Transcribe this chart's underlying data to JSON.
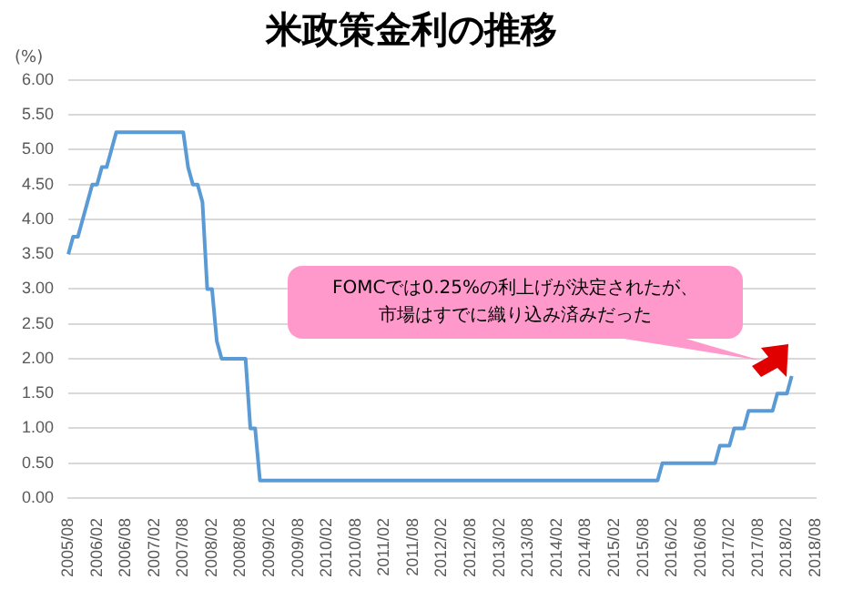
{
  "chart_data": {
    "type": "line",
    "title": "米政策金利の推移",
    "ylabel": "(%)",
    "categories": [
      "2005/08",
      null,
      null,
      null,
      null,
      null,
      "2006/02",
      null,
      null,
      null,
      null,
      null,
      "2006/08",
      null,
      null,
      null,
      null,
      null,
      "2007/02",
      null,
      null,
      null,
      null,
      null,
      "2007/08",
      null,
      null,
      null,
      null,
      null,
      "2008/02",
      null,
      null,
      null,
      null,
      null,
      "2008/08",
      null,
      null,
      null,
      null,
      null,
      "2009/02",
      null,
      null,
      null,
      null,
      null,
      "2009/08",
      null,
      null,
      null,
      null,
      null,
      "2010/02",
      null,
      null,
      null,
      null,
      null,
      "2010/08",
      null,
      null,
      null,
      null,
      null,
      "2011/02",
      null,
      null,
      null,
      null,
      null,
      "2011/08",
      null,
      null,
      null,
      null,
      null,
      "2012/02",
      null,
      null,
      null,
      null,
      null,
      "2012/08",
      null,
      null,
      null,
      null,
      null,
      "2013/02",
      null,
      null,
      null,
      null,
      null,
      "2013/08",
      null,
      null,
      null,
      null,
      null,
      "2014/02",
      null,
      null,
      null,
      null,
      null,
      "2014/08",
      null,
      null,
      null,
      null,
      null,
      "2015/02",
      null,
      null,
      null,
      null,
      null,
      "2015/08",
      null,
      null,
      null,
      null,
      null,
      "2016/02",
      null,
      null,
      null,
      null,
      null,
      "2016/08",
      null,
      null,
      null,
      null,
      null,
      "2017/02",
      null,
      null,
      null,
      null,
      null,
      "2017/08",
      null,
      null,
      null,
      null,
      null,
      "2018/02",
      null,
      null,
      null,
      null,
      null,
      "2018/08"
    ],
    "series": [
      {
        "color": "#5b9bd5",
        "values": [
          3.5,
          3.75,
          3.75,
          4,
          4.25,
          4.5,
          4.5,
          4.75,
          4.75,
          5,
          5.25,
          5.25,
          5.25,
          5.25,
          5.25,
          5.25,
          5.25,
          5.25,
          5.25,
          5.25,
          5.25,
          5.25,
          5.25,
          5.25,
          5.25,
          4.75,
          4.5,
          4.5,
          4.25,
          3,
          3,
          2.25,
          2,
          2,
          2,
          2,
          2,
          2,
          1,
          1,
          0.25,
          0.25,
          0.25,
          0.25,
          0.25,
          0.25,
          0.25,
          0.25,
          0.25,
          0.25,
          0.25,
          0.25,
          0.25,
          0.25,
          0.25,
          0.25,
          0.25,
          0.25,
          0.25,
          0.25,
          0.25,
          0.25,
          0.25,
          0.25,
          0.25,
          0.25,
          0.25,
          0.25,
          0.25,
          0.25,
          0.25,
          0.25,
          0.25,
          0.25,
          0.25,
          0.25,
          0.25,
          0.25,
          0.25,
          0.25,
          0.25,
          0.25,
          0.25,
          0.25,
          0.25,
          0.25,
          0.25,
          0.25,
          0.25,
          0.25,
          0.25,
          0.25,
          0.25,
          0.25,
          0.25,
          0.25,
          0.25,
          0.25,
          0.25,
          0.25,
          0.25,
          0.25,
          0.25,
          0.25,
          0.25,
          0.25,
          0.25,
          0.25,
          0.25,
          0.25,
          0.25,
          0.25,
          0.25,
          0.25,
          0.25,
          0.25,
          0.25,
          0.25,
          0.25,
          0.25,
          0.25,
          0.25,
          0.25,
          0.25,
          0.5,
          0.5,
          0.5,
          0.5,
          0.5,
          0.5,
          0.5,
          0.5,
          0.5,
          0.5,
          0.5,
          0.5,
          0.75,
          0.75,
          0.75,
          1,
          1,
          1,
          1.25,
          1.25,
          1.25,
          1.25,
          1.25,
          1.25,
          1.5,
          1.5,
          1.5,
          1.75,
          null,
          null,
          null,
          null,
          null
        ]
      }
    ],
    "ylim": [
      0,
      6
    ],
    "yticks": [
      {
        "value": 0,
        "label": "0.00"
      },
      {
        "value": 0.5,
        "label": "0.50"
      },
      {
        "value": 1,
        "label": "1.00"
      },
      {
        "value": 1.5,
        "label": "1.50"
      },
      {
        "value": 2,
        "label": "2.00"
      },
      {
        "value": 2.5,
        "label": "2.50"
      },
      {
        "value": 3,
        "label": "3.00"
      },
      {
        "value": 3.5,
        "label": "3.50"
      },
      {
        "value": 4,
        "label": "4.00"
      },
      {
        "value": 4.5,
        "label": "4.50"
      },
      {
        "value": 5,
        "label": "5.00"
      },
      {
        "value": 5.5,
        "label": "5.50"
      },
      {
        "value": 6,
        "label": "6.00"
      }
    ],
    "grid": "y",
    "legend": false,
    "marker": "none",
    "line_style": "solid",
    "annotations": [
      "FOMCでは0.25%の利上げが決定されたが、",
      "市場はすでに織り込み済みだった"
    ]
  }
}
